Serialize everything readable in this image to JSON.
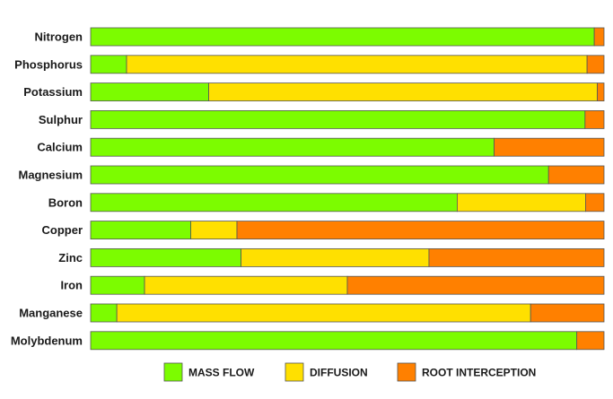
{
  "chart_data": {
    "type": "bar",
    "orientation": "horizontal",
    "stacked": "100%",
    "categories": [
      "Nitrogen",
      "Phosphorus",
      "Potassium",
      "Sulphur",
      "Calcium",
      "Magnesium",
      "Boron",
      "Copper",
      "Zinc",
      "Iron",
      "Manganese",
      "Molybdenum"
    ],
    "series": [
      {
        "name": "MASS FLOW",
        "color": "#7cfc00",
        "values": [
          98.1,
          7.0,
          23.0,
          96.3,
          78.6,
          89.2,
          71.4,
          19.5,
          29.3,
          10.5,
          5.1,
          94.7
        ]
      },
      {
        "name": "DIFFUSION",
        "color": "#ffe000",
        "values": [
          0,
          89.7,
          75.7,
          0,
          0,
          0,
          25.0,
          9.0,
          36.6,
          39.5,
          80.6,
          0
        ]
      },
      {
        "name": "ROOT INTERCEPTION",
        "color": "#ff8000",
        "values": [
          1.9,
          3.3,
          1.3,
          3.7,
          21.4,
          10.8,
          3.6,
          71.5,
          34.1,
          50.0,
          14.3,
          5.3
        ]
      }
    ],
    "xlim": [
      0,
      100
    ],
    "grid": false,
    "legend": "bottom-center",
    "title": "",
    "xlabel": "",
    "ylabel": ""
  }
}
